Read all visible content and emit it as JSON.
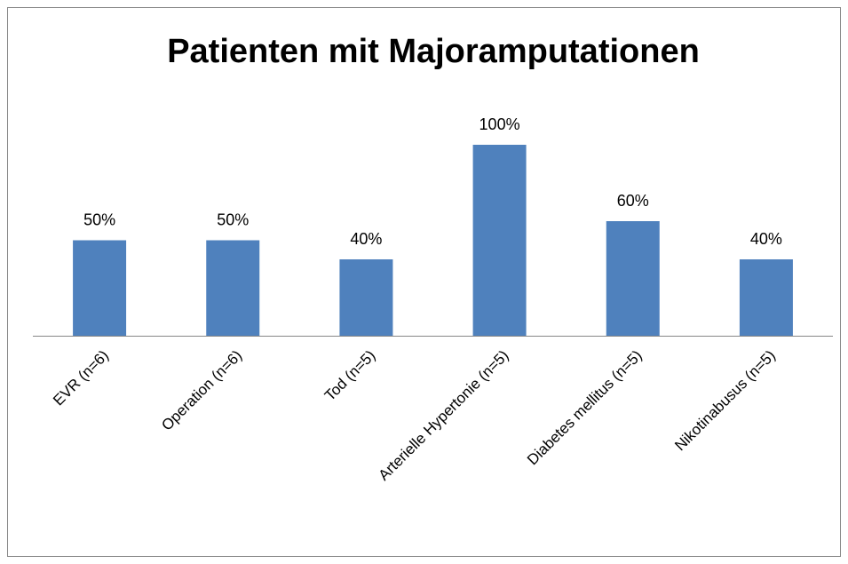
{
  "chart_data": {
    "type": "bar",
    "title": "Patienten mit Majoramputationen",
    "categories": [
      "EVR (n=6)",
      "Operation (n=6)",
      "Tod (n=5)",
      "Arterielle Hypertonie (n=5)",
      "Diabetes mellitus (n=5)",
      "Nikotinabusus (n=5)"
    ],
    "values": [
      50,
      50,
      40,
      100,
      60,
      40
    ],
    "value_labels": [
      "50%",
      "50%",
      "40%",
      "100%",
      "60%",
      "40%"
    ],
    "color": "#4f81bd"
  }
}
